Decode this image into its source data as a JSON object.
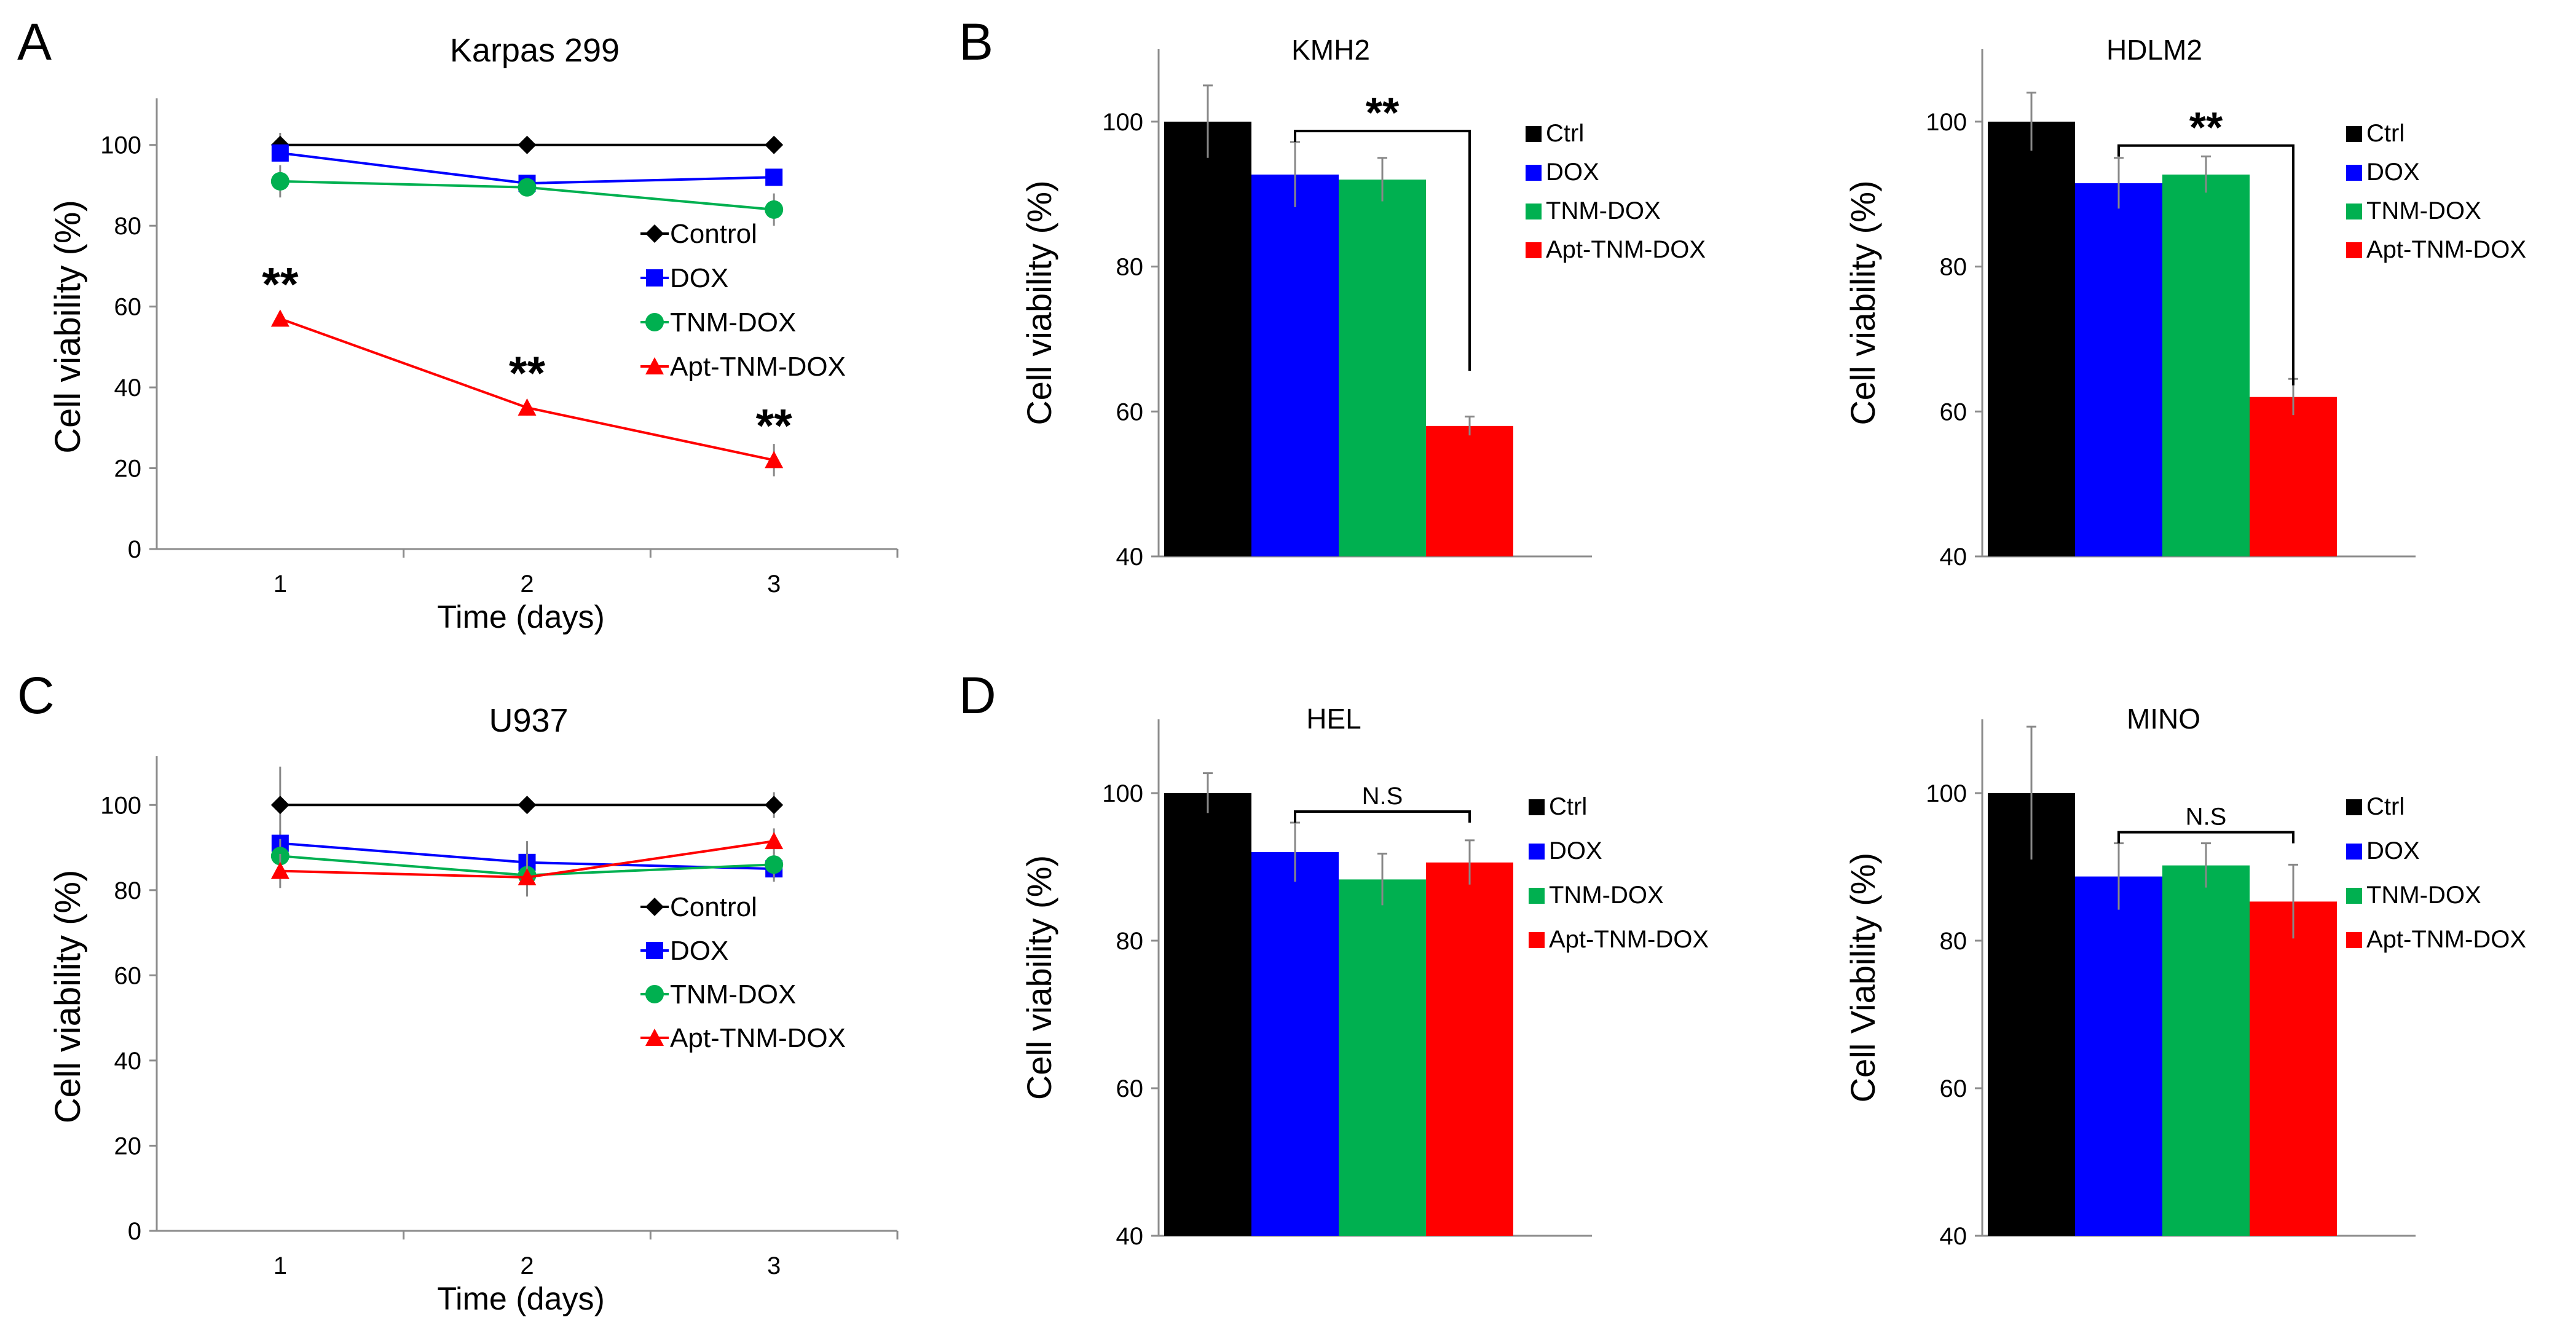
{
  "panel_labels": [
    "A",
    "B",
    "C",
    "D"
  ],
  "colors": {
    "Control": "#000000",
    "Ctrl": "#000000",
    "DOX": "#0000ff",
    "TNM-DOX": "#00b050",
    "Apt-TNM-DOX": "#ff0000"
  },
  "chart_data": [
    {
      "id": "A",
      "type": "line",
      "title": "Karpas 299",
      "xlabel": "Time (days)",
      "ylabel": "Cell viability (%)",
      "x": [
        1,
        2,
        3
      ],
      "xlim": [
        0.5,
        3.5
      ],
      "ylim": [
        0,
        110
      ],
      "yticks": [
        0,
        20,
        40,
        60,
        80,
        100
      ],
      "grid": false,
      "legend": "right",
      "series": [
        {
          "name": "Control",
          "values": [
            100,
            100,
            100
          ],
          "errors": [
            3,
            0,
            0
          ],
          "marker": "diamond"
        },
        {
          "name": "DOX",
          "values": [
            98,
            90.5,
            92
          ],
          "errors": [
            0,
            0,
            0
          ],
          "marker": "square"
        },
        {
          "name": "TNM-DOX",
          "values": [
            91,
            89.5,
            84
          ],
          "errors": [
            4,
            0,
            4
          ],
          "marker": "circle"
        },
        {
          "name": "Apt-TNM-DOX",
          "values": [
            57,
            35,
            22
          ],
          "errors": [
            1,
            2,
            4
          ],
          "marker": "triangle"
        }
      ],
      "annotations": [
        {
          "x": 1,
          "y": 57,
          "text": "**"
        },
        {
          "x": 2,
          "y": 35,
          "text": "**"
        },
        {
          "x": 3,
          "y": 22,
          "text": "**"
        }
      ]
    },
    {
      "id": "B1",
      "type": "bar",
      "title": "KMH2",
      "ylabel": "Cell viability (%)",
      "categories": [
        "Ctrl",
        "DOX",
        "TNM-DOX",
        "Apt-TNM-DOX"
      ],
      "values": [
        100,
        92.7,
        92,
        58
      ],
      "errors": [
        5,
        4.5,
        3,
        1.3
      ],
      "ylim": [
        40,
        110
      ],
      "yticks": [
        40,
        60,
        80,
        100
      ],
      "legend": "right",
      "bracket": {
        "from": 1,
        "to": 3,
        "text": "**"
      }
    },
    {
      "id": "B2",
      "type": "bar",
      "title": "HDLM2",
      "ylabel": "Cell viability (%)",
      "categories": [
        "Ctrl",
        "DOX",
        "TNM-DOX",
        "Apt-TNM-DOX"
      ],
      "values": [
        100,
        91.5,
        92.7,
        62
      ],
      "errors": [
        4,
        3.5,
        2.5,
        2.5
      ],
      "ylim": [
        40,
        110
      ],
      "yticks": [
        40,
        60,
        80,
        100
      ],
      "legend": "right",
      "bracket": {
        "from": 1,
        "to": 3,
        "text": "**"
      }
    },
    {
      "id": "C",
      "type": "line",
      "title": "U937",
      "xlabel": "Time (days)",
      "ylabel": "Cell viability (%)",
      "x": [
        1,
        2,
        3
      ],
      "xlim": [
        0.5,
        3.5
      ],
      "ylim": [
        0,
        110
      ],
      "yticks": [
        0,
        20,
        40,
        60,
        80,
        100
      ],
      "grid": false,
      "legend": "right",
      "series": [
        {
          "name": "Control",
          "values": [
            100,
            100,
            100
          ],
          "errors": [
            9,
            0,
            3
          ],
          "marker": "diamond"
        },
        {
          "name": "DOX",
          "values": [
            91,
            86.5,
            85
          ],
          "errors": [
            3,
            5,
            3
          ],
          "marker": "square"
        },
        {
          "name": "TNM-DOX",
          "values": [
            88,
            83.5,
            86
          ],
          "errors": [
            4,
            5,
            3
          ],
          "marker": "circle"
        },
        {
          "name": "Apt-TNM-DOX",
          "values": [
            84.5,
            83,
            91.5
          ],
          "errors": [
            4,
            4,
            3
          ],
          "marker": "triangle"
        }
      ]
    },
    {
      "id": "D1",
      "type": "bar",
      "title": "HEL",
      "ylabel": "Cell viability (%)",
      "categories": [
        "Ctrl",
        "DOX",
        "TNM-DOX",
        "Apt-TNM-DOX"
      ],
      "values": [
        100,
        92,
        88.3,
        90.6
      ],
      "errors": [
        2.7,
        4,
        3.5,
        3
      ],
      "ylim": [
        40,
        110
      ],
      "yticks": [
        40,
        60,
        80,
        100
      ],
      "legend": "right",
      "bracket": {
        "from": 1,
        "to": 3,
        "text": "N.S"
      }
    },
    {
      "id": "D2",
      "type": "bar",
      "title": "MINO",
      "ylabel": "Cell Viability (%)",
      "categories": [
        "Ctrl",
        "DOX",
        "TNM-DOX",
        "Apt-TNM-DOX"
      ],
      "values": [
        100,
        88.7,
        90.2,
        85.3
      ],
      "errors": [
        9,
        4.5,
        3,
        5
      ],
      "ylim": [
        40,
        110
      ],
      "yticks": [
        40,
        60,
        80,
        100
      ],
      "legend": "right",
      "bracket": {
        "from": 1,
        "to": 3,
        "text": "N.S"
      }
    }
  ]
}
